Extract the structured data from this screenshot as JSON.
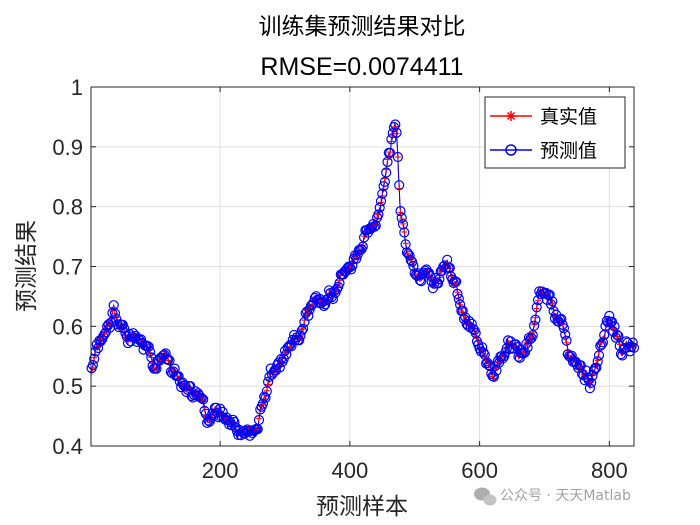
{
  "chart_data": {
    "type": "line",
    "title": "训练集预测结果对比",
    "subtitle": "RMSE=0.0074411",
    "xlabel": "预测样本",
    "ylabel": "预测结果",
    "xlim": [
      1,
      838
    ],
    "ylim": [
      0.4,
      1.0
    ],
    "x_ticks": [
      200,
      400,
      600,
      800
    ],
    "y_ticks": [
      0.4,
      0.5,
      0.6,
      0.7,
      0.8,
      0.9,
      1.0
    ],
    "y_tick_labels": [
      "0.4",
      "0.5",
      "0.6",
      "0.7",
      "0.8",
      "0.9",
      "1"
    ],
    "grid": true,
    "legend_position": "top-right",
    "key_points": [
      [
        1,
        0.52
      ],
      [
        10,
        0.56
      ],
      [
        20,
        0.58
      ],
      [
        30,
        0.6
      ],
      [
        35,
        0.63
      ],
      [
        45,
        0.6
      ],
      [
        60,
        0.585
      ],
      [
        80,
        0.575
      ],
      [
        90,
        0.565
      ],
      [
        100,
        0.53
      ],
      [
        115,
        0.55
      ],
      [
        130,
        0.52
      ],
      [
        150,
        0.495
      ],
      [
        170,
        0.475
      ],
      [
        180,
        0.445
      ],
      [
        195,
        0.47
      ],
      [
        210,
        0.445
      ],
      [
        225,
        0.425
      ],
      [
        240,
        0.415
      ],
      [
        255,
        0.425
      ],
      [
        265,
        0.47
      ],
      [
        280,
        0.52
      ],
      [
        300,
        0.545
      ],
      [
        320,
        0.58
      ],
      [
        340,
        0.625
      ],
      [
        360,
        0.645
      ],
      [
        375,
        0.665
      ],
      [
        395,
        0.7
      ],
      [
        410,
        0.72
      ],
      [
        430,
        0.76
      ],
      [
        440,
        0.78
      ],
      [
        450,
        0.82
      ],
      [
        460,
        0.875
      ],
      [
        470,
        0.935
      ],
      [
        480,
        0.78
      ],
      [
        490,
        0.72
      ],
      [
        505,
        0.68
      ],
      [
        520,
        0.69
      ],
      [
        535,
        0.68
      ],
      [
        550,
        0.7
      ],
      [
        560,
        0.67
      ],
      [
        575,
        0.62
      ],
      [
        590,
        0.6
      ],
      [
        605,
        0.55
      ],
      [
        620,
        0.52
      ],
      [
        630,
        0.55
      ],
      [
        645,
        0.575
      ],
      [
        660,
        0.55
      ],
      [
        680,
        0.58
      ],
      [
        695,
        0.65
      ],
      [
        710,
        0.635
      ],
      [
        725,
        0.6
      ],
      [
        740,
        0.55
      ],
      [
        755,
        0.53
      ],
      [
        770,
        0.51
      ],
      [
        780,
        0.54
      ],
      [
        790,
        0.58
      ],
      [
        800,
        0.61
      ],
      [
        810,
        0.585
      ],
      [
        820,
        0.56
      ],
      [
        830,
        0.57
      ],
      [
        838,
        0.575
      ]
    ],
    "series": [
      {
        "name": "真实值",
        "color": "#ff0000",
        "marker": "*"
      },
      {
        "name": "预测值",
        "color": "#0000ff",
        "marker": "o"
      }
    ]
  },
  "watermark": {
    "text": "公众号 · 天天Matlab"
  }
}
